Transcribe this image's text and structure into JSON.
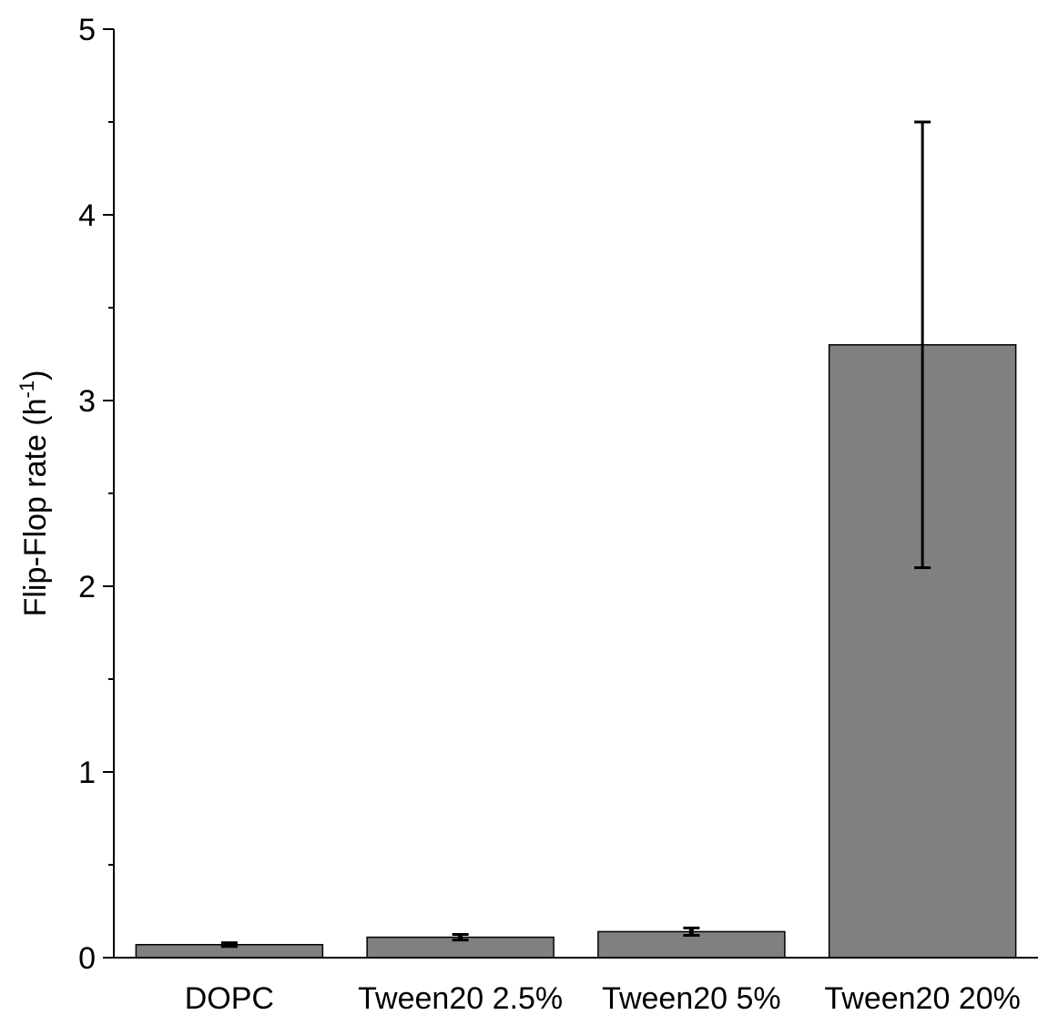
{
  "chart_data": {
    "type": "bar",
    "categories": [
      "DOPC",
      "Tween20 2.5%",
      "Tween20 5%",
      "Tween20 20%"
    ],
    "values": [
      0.07,
      0.11,
      0.14,
      3.3
    ],
    "errors": [
      0.01,
      0.015,
      0.02,
      1.2
    ],
    "ylabel_main": "Flip-Flop rate (h",
    "ylabel_sup": "-1",
    "ylabel_end": ")",
    "ylim": [
      0,
      5
    ],
    "yticks": [
      "0",
      "1",
      "2",
      "3",
      "4",
      "5"
    ],
    "minor_step": 0.5,
    "bar_color": "#808080",
    "edge_color": "#000000",
    "grid": false
  }
}
